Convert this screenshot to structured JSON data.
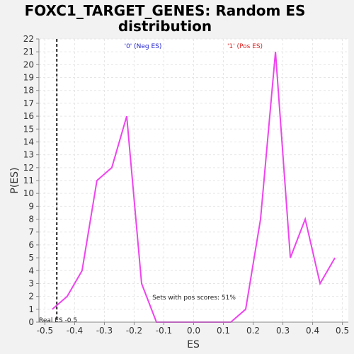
{
  "chart_data": {
    "type": "line",
    "title_line1": "FOXC1_TARGET_GENES: Random ES",
    "title_line2": "distribution",
    "xlabel": "ES",
    "ylabel": "P(ES)",
    "xlim": [
      -0.52,
      0.52
    ],
    "ylim": [
      0,
      22
    ],
    "xticks": [
      "-0.5",
      "-0.4",
      "-0.3",
      "-0.2",
      "-0.1",
      "0.0",
      "0.1",
      "0.2",
      "0.3",
      "0.4",
      "0.5"
    ],
    "xtick_values": [
      -0.5,
      -0.4,
      -0.3,
      -0.2,
      -0.1,
      0.0,
      0.1,
      0.2,
      0.3,
      0.4,
      0.5
    ],
    "yticks": [
      "0",
      "1",
      "2",
      "3",
      "4",
      "5",
      "6",
      "7",
      "8",
      "9",
      "10",
      "11",
      "12",
      "13",
      "14",
      "15",
      "16",
      "17",
      "18",
      "19",
      "20",
      "21",
      "22"
    ],
    "ytick_values": [
      0,
      1,
      2,
      3,
      4,
      5,
      6,
      7,
      8,
      9,
      10,
      11,
      12,
      13,
      14,
      15,
      16,
      17,
      18,
      19,
      20,
      21,
      22
    ],
    "grid": true,
    "series": [
      {
        "color": "#ee44ee",
        "x": [
          -0.475,
          -0.425,
          -0.375,
          -0.325,
          -0.275,
          -0.225,
          -0.175,
          -0.125,
          -0.075,
          -0.025,
          0.025,
          0.075,
          0.125,
          0.175,
          0.225,
          0.275,
          0.325,
          0.375,
          0.425,
          0.475
        ],
        "y": [
          1,
          2,
          4,
          11,
          12,
          16,
          3,
          0,
          0,
          0,
          0,
          0,
          0,
          1,
          8,
          21,
          5,
          8,
          3,
          5
        ]
      }
    ],
    "real_es": {
      "x": -0.46,
      "label": "Real ES -0.5"
    },
    "annotations": {
      "neg": {
        "text": "'0' (Neg ES)",
        "color": "#2222cc"
      },
      "pos": {
        "text": "'1' (Pos ES)",
        "color": "#dd2222"
      },
      "pos_scores": "Sets with pos scores: 51%"
    }
  }
}
